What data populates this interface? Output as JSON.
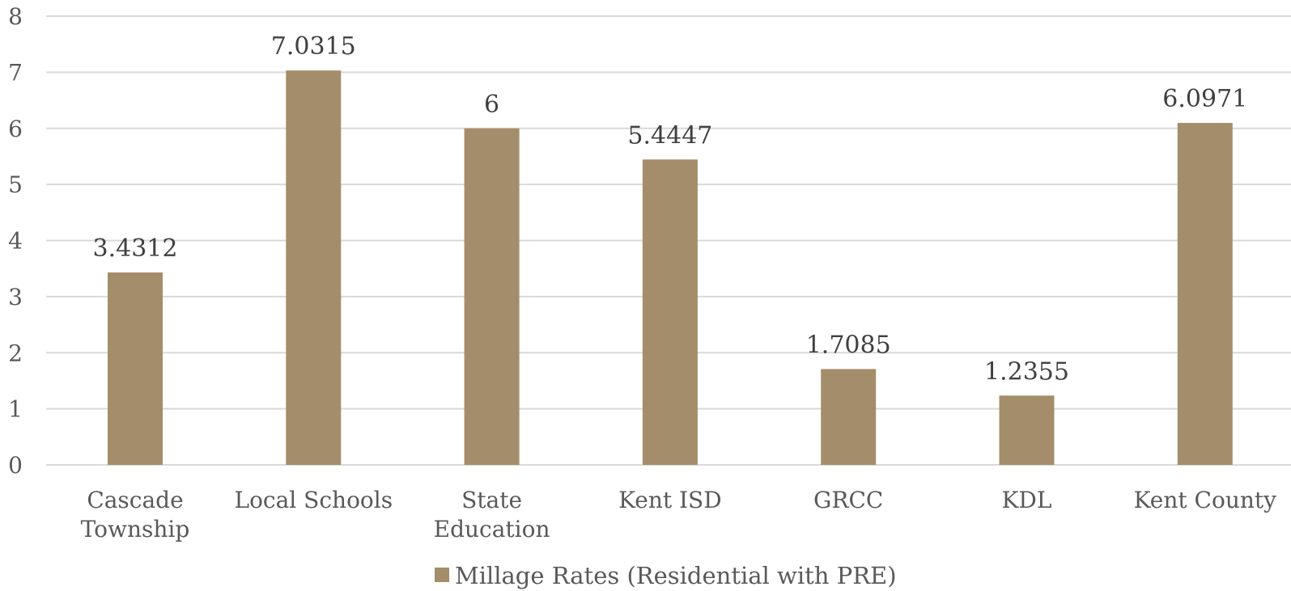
{
  "chart_data": {
    "type": "bar",
    "categories": [
      [
        "Cascade",
        "Township"
      ],
      [
        "Local Schools"
      ],
      [
        "State",
        "Education"
      ],
      [
        "Kent ISD"
      ],
      [
        "GRCC"
      ],
      [
        "KDL"
      ],
      [
        "Kent County"
      ]
    ],
    "series": [
      {
        "name": "Millage Rates (Residential with PRE)",
        "values": [
          3.4312,
          7.0315,
          6,
          5.4447,
          1.7085,
          1.2355,
          6.0971
        ],
        "labels": [
          "3.4312",
          "7.0315",
          "6",
          "5.4447",
          "1.7085",
          "1.2355",
          "6.0971"
        ],
        "color": "#A48D6A"
      }
    ],
    "ylim": [
      0,
      8
    ],
    "yticks": [
      "0",
      "1",
      "2",
      "3",
      "4",
      "5",
      "6",
      "7",
      "8"
    ],
    "grid": true,
    "legend_position": "bottom",
    "title": "",
    "xlabel": "",
    "ylabel": ""
  }
}
